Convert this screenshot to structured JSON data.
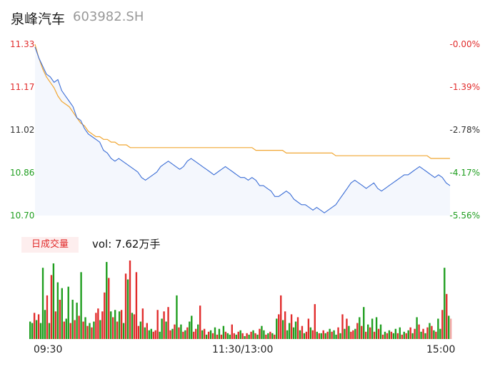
{
  "stock": {
    "name": "泉峰汽车",
    "code": "603982.SH"
  },
  "colors": {
    "price": "#3d6fd6",
    "avg": "#f1a733",
    "up": "#e12c2c",
    "down": "#1f9e1f",
    "flat": "#333333",
    "fill": "#f4f7fd"
  },
  "volume": {
    "badge": "日成交量",
    "text": "vol: 7.62万手"
  },
  "chart_data": [
    {
      "type": "line",
      "y_ticks": [
        "11.33",
        "11.17",
        "11.02",
        "10.86",
        "10.70"
      ],
      "pct_ticks": [
        "-0.00%",
        "-1.39%",
        "-2.78%",
        "-4.17%",
        "-5.56%"
      ],
      "x_ticks": [
        "09:30",
        "11:30/13:00",
        "15:00"
      ],
      "ylim": [
        10.7,
        11.33
      ],
      "series": [
        {
          "values": [
            11.32,
            11.28,
            11.25,
            11.22,
            11.21,
            11.19,
            11.2,
            11.16,
            11.14,
            11.12,
            11.1,
            11.06,
            11.05,
            11.02,
            11.0,
            10.99,
            10.98,
            10.97,
            10.94,
            10.93,
            10.91,
            10.9,
            10.91,
            10.9,
            10.89,
            10.88,
            10.87,
            10.86,
            10.84,
            10.83,
            10.84,
            10.85,
            10.86,
            10.88,
            10.89,
            10.9,
            10.89,
            10.88,
            10.87,
            10.88,
            10.9,
            10.91,
            10.9,
            10.89,
            10.88,
            10.87,
            10.86,
            10.85,
            10.86,
            10.87,
            10.88,
            10.87,
            10.86,
            10.85,
            10.84,
            10.84,
            10.83,
            10.84,
            10.83,
            10.81,
            10.81,
            10.8,
            10.79,
            10.77,
            10.77,
            10.78,
            10.79,
            10.78,
            10.76,
            10.75,
            10.74,
            10.74,
            10.73,
            10.72,
            10.73,
            10.72,
            10.71,
            10.72,
            10.73,
            10.74,
            10.76,
            10.78,
            10.8,
            10.82,
            10.83,
            10.82,
            10.81,
            10.8,
            10.81,
            10.82,
            10.8,
            10.79,
            10.8,
            10.81,
            10.82,
            10.83,
            10.84,
            10.85,
            10.85,
            10.86,
            10.87,
            10.88,
            10.87,
            10.86,
            10.85,
            10.84,
            10.85,
            10.84,
            10.82,
            10.81
          ]
        },
        {
          "values": [
            11.33,
            11.28,
            11.24,
            11.21,
            11.19,
            11.17,
            11.14,
            11.12,
            11.11,
            11.1,
            11.08,
            11.06,
            11.04,
            11.03,
            11.01,
            11.0,
            10.99,
            10.99,
            10.98,
            10.98,
            10.97,
            10.97,
            10.96,
            10.96,
            10.96,
            10.95,
            10.95,
            10.95,
            10.95,
            10.95,
            10.95,
            10.95,
            10.95,
            10.95,
            10.95,
            10.95,
            10.95,
            10.95,
            10.95,
            10.95,
            10.95,
            10.95,
            10.95,
            10.95,
            10.95,
            10.95,
            10.95,
            10.95,
            10.95,
            10.95,
            10.95,
            10.95,
            10.95,
            10.95,
            10.95,
            10.95,
            10.95,
            10.95,
            10.94,
            10.94,
            10.94,
            10.94,
            10.94,
            10.94,
            10.94,
            10.94,
            10.93,
            10.93,
            10.93,
            10.93,
            10.93,
            10.93,
            10.93,
            10.93,
            10.93,
            10.93,
            10.93,
            10.93,
            10.93,
            10.92,
            10.92,
            10.92,
            10.92,
            10.92,
            10.92,
            10.92,
            10.92,
            10.92,
            10.92,
            10.92,
            10.92,
            10.92,
            10.92,
            10.92,
            10.92,
            10.92,
            10.92,
            10.92,
            10.92,
            10.92,
            10.92,
            10.92,
            10.92,
            10.92,
            10.91,
            10.91,
            10.91,
            10.91,
            10.91,
            10.91
          ]
        }
      ]
    },
    {
      "type": "bar",
      "values": [
        24,
        22,
        36,
        26,
        34,
        22,
        98,
        40,
        60,
        22,
        88,
        104,
        38,
        78,
        54,
        70,
        24,
        28,
        72,
        22,
        54,
        26,
        50,
        32,
        92,
        24,
        30,
        18,
        22,
        16,
        24,
        36,
        42,
        26,
        38,
        64,
        106,
        84,
        38,
        30,
        40,
        24,
        38,
        40,
        22,
        90,
        82,
        108,
        36,
        34,
        92,
        18,
        24,
        42,
        16,
        22,
        12,
        14,
        10,
        12,
        40,
        10,
        28,
        38,
        24,
        44,
        12,
        14,
        20,
        60,
        16,
        20,
        10,
        12,
        16,
        24,
        32,
        10,
        14,
        20,
        46,
        12,
        14,
        6,
        10,
        12,
        8,
        16,
        6,
        14,
        6,
        18,
        10,
        8,
        6,
        20,
        8,
        6,
        10,
        12,
        8,
        4,
        8,
        6,
        10,
        12,
        8,
        6,
        14,
        18,
        12,
        6,
        8,
        10,
        8,
        6,
        28,
        34,
        60,
        26,
        38,
        12,
        22,
        34,
        16,
        24,
        30,
        12,
        18,
        8,
        10,
        28,
        16,
        12,
        48,
        10,
        8,
        8,
        12,
        8,
        10,
        14,
        10,
        12,
        6,
        16,
        8,
        34,
        14,
        28,
        18,
        10,
        12,
        14,
        22,
        30,
        18,
        44,
        10,
        20,
        16,
        28,
        10,
        30,
        14,
        20,
        6,
        10,
        8,
        12,
        10,
        8,
        14,
        8,
        16,
        6,
        10,
        8,
        12,
        16,
        8,
        14,
        30,
        20,
        10,
        14,
        8,
        16,
        22,
        18,
        12,
        10,
        28,
        14,
        40,
        98,
        62,
        32,
        28
      ],
      "colors": [
        "down",
        "down",
        "up",
        "down",
        "up",
        "down",
        "down",
        "down",
        "up",
        "down",
        "up",
        "down",
        "up",
        "down",
        "up",
        "down",
        "up",
        "down",
        "down",
        "up",
        "down",
        "up",
        "down",
        "up",
        "down",
        "up",
        "down",
        "up",
        "down",
        "up",
        "down",
        "up",
        "up",
        "down",
        "up",
        "up",
        "down",
        "up",
        "down",
        "up",
        "down",
        "up",
        "down",
        "up",
        "down",
        "up",
        "down",
        "up",
        "down",
        "up",
        "up",
        "up",
        "down",
        "up",
        "down",
        "up",
        "down",
        "down",
        "up",
        "up",
        "up",
        "down",
        "down",
        "up",
        "down",
        "up",
        "up",
        "down",
        "up",
        "down",
        "up",
        "down",
        "up",
        "down",
        "up",
        "down",
        "down",
        "up",
        "up",
        "down",
        "up",
        "down",
        "up",
        "down",
        "up",
        "down",
        "up",
        "down",
        "up",
        "down",
        "up",
        "down",
        "up",
        "down",
        "down",
        "up",
        "up",
        "down",
        "up",
        "down",
        "up",
        "down",
        "up",
        "down",
        "up",
        "down",
        "up",
        "down",
        "up",
        "down",
        "down",
        "up",
        "down",
        "up",
        "down",
        "up",
        "down",
        "up",
        "up",
        "down",
        "up",
        "down",
        "down",
        "up",
        "down",
        "down",
        "up",
        "down",
        "up",
        "down",
        "up",
        "up",
        "down",
        "up",
        "up",
        "down",
        "up",
        "down",
        "up",
        "down",
        "up",
        "down",
        "up",
        "down",
        "down",
        "up",
        "down",
        "up",
        "down",
        "up",
        "down",
        "up",
        "up",
        "down",
        "up",
        "down",
        "up",
        "down",
        "up",
        "down",
        "up",
        "down",
        "up",
        "down",
        "up",
        "down",
        "up",
        "down",
        "up",
        "down",
        "up",
        "down",
        "down",
        "up",
        "down",
        "up",
        "down",
        "up",
        "down",
        "up",
        "down",
        "up",
        "down",
        "up",
        "down",
        "up",
        "down",
        "up",
        "down",
        "up",
        "down",
        "up",
        "down",
        "down",
        "up",
        "down",
        "up",
        "down",
        "flat"
      ]
    }
  ]
}
